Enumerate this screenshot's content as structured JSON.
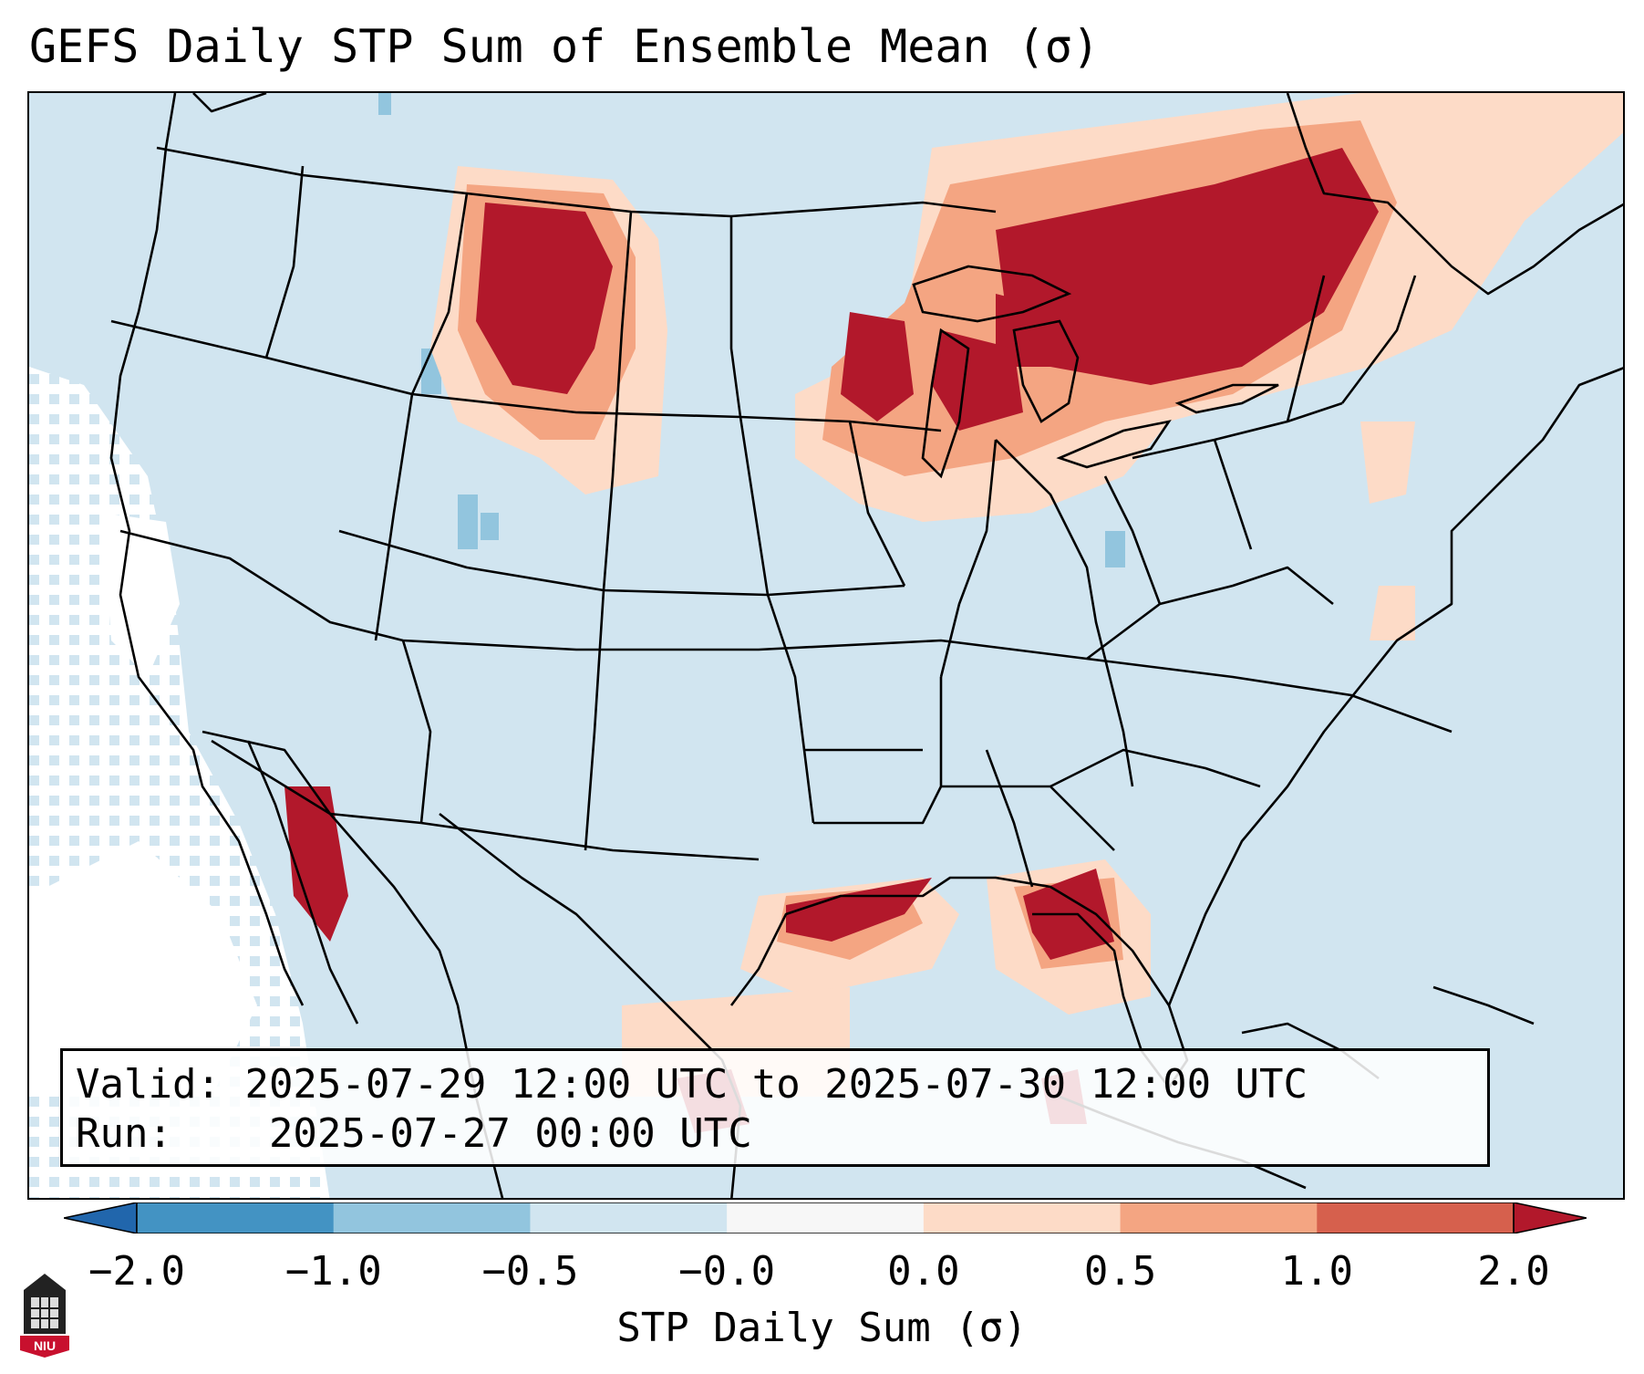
{
  "title": "GEFS Daily STP Sum of Ensemble Mean (σ)",
  "info": {
    "valid_label": "Valid:",
    "valid_value": "2025-07-29 12:00 UTC to 2025-07-30 12:00 UTC",
    "run_label": "Run:",
    "run_value": "2025-07-27 00:00 UTC"
  },
  "colorbar": {
    "label": "STP Daily Sum (σ)",
    "ticks": [
      "−2.0",
      "−1.0",
      "−0.5",
      "−0.0",
      "0.0",
      "0.5",
      "1.0",
      "2.0"
    ],
    "colors": [
      "#4393c3",
      "#92c5de",
      "#d1e5f0",
      "#f7f7f7",
      "#fddbc7",
      "#f4a582",
      "#d6604d"
    ],
    "under_color": "#2166ac",
    "over_color": "#b2182b"
  },
  "map": {
    "projection": "Lambert conformal, CONUS",
    "background_color": "#d1e5f0",
    "highlight_regions": [
      "Montana / Wyoming",
      "Great Lakes / Ontario / Quebec",
      "Northeast US",
      "Louisiana Gulf coast",
      "Florida / Gulf of Mexico",
      "Gulf of California"
    ]
  },
  "logo": {
    "text": "NIU"
  }
}
